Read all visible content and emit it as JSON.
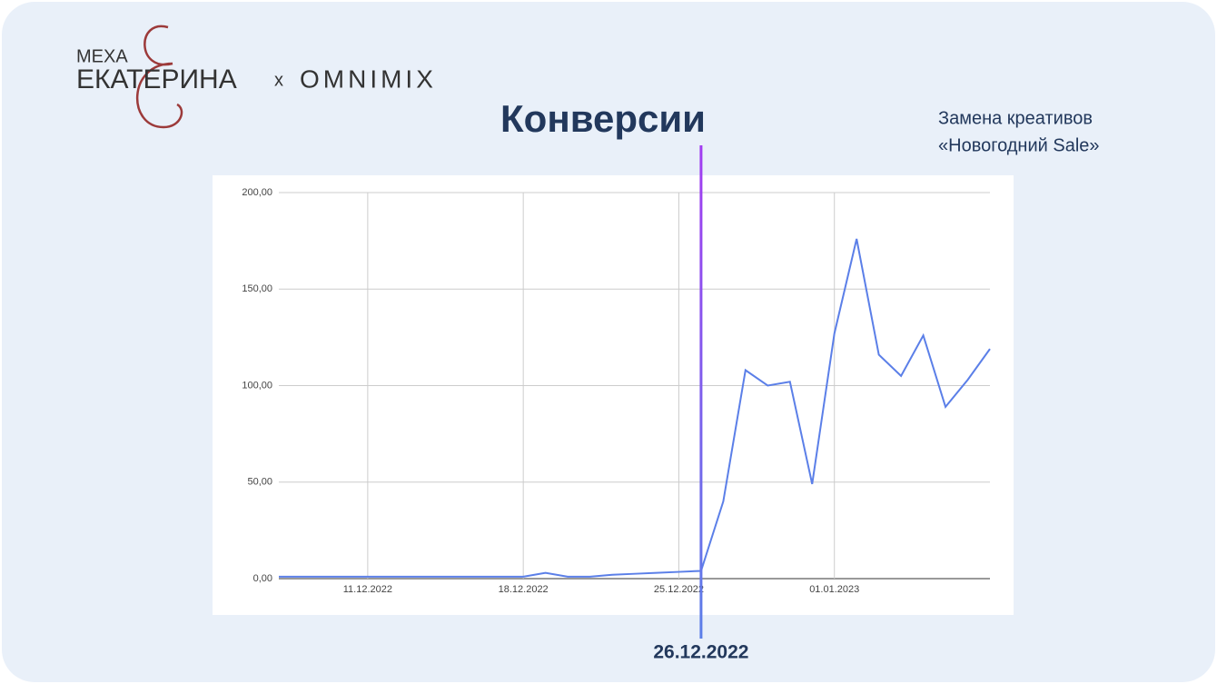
{
  "logo": {
    "top": "МЕХА",
    "main": "ЕКАТЕРИНА",
    "separator": "x",
    "partner": "OMNIMIX"
  },
  "chart_data": {
    "type": "line",
    "title": "Конверсии",
    "x": [
      "07.12.2022",
      "08.12.2022",
      "09.12.2022",
      "10.12.2022",
      "11.12.2022",
      "12.12.2022",
      "13.12.2022",
      "14.12.2022",
      "15.12.2022",
      "16.12.2022",
      "17.12.2022",
      "18.12.2022",
      "19.12.2022",
      "20.12.2022",
      "21.12.2022",
      "22.12.2022",
      "23.12.2022",
      "24.12.2022",
      "25.12.2022",
      "26.12.2022",
      "27.12.2022",
      "28.12.2022",
      "29.12.2022",
      "30.12.2022",
      "31.12.2022",
      "01.01.2023",
      "02.01.2023",
      "03.01.2023",
      "04.01.2023",
      "05.01.2023",
      "06.01.2023",
      "07.01.2023",
      "08.01.2023"
    ],
    "values": [
      1,
      1,
      1,
      1,
      1,
      1,
      1,
      1,
      1,
      1,
      1,
      1,
      3,
      1,
      1,
      2,
      2.5,
      3,
      3.5,
      4,
      40,
      108,
      100,
      102,
      49,
      127,
      176,
      116,
      105,
      126,
      89,
      103,
      119
    ],
    "color": "#5b7fe8",
    "xticks": [
      "11.12.2022",
      "18.12.2022",
      "25.12.2022",
      "01.01.2023"
    ],
    "ylim": [
      0,
      200
    ],
    "yticks": [
      {
        "value": 0,
        "label": "0,00"
      },
      {
        "value": 50,
        "label": "50,00"
      },
      {
        "value": 100,
        "label": "100,00"
      },
      {
        "value": 150,
        "label": "150,00"
      },
      {
        "value": 200,
        "label": "200,00"
      }
    ],
    "grid": true,
    "marker": {
      "date": "26.12.2022",
      "note_line1": "Замена креативов",
      "note_line2": "«Новогодний Sale»"
    }
  }
}
